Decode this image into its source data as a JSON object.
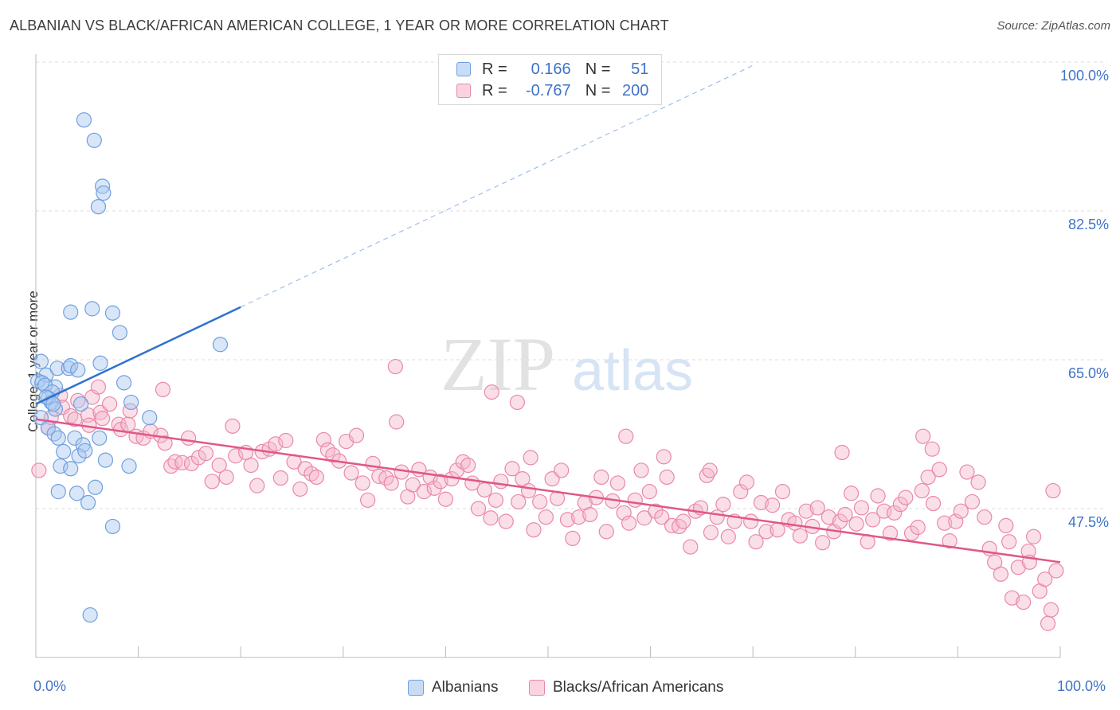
{
  "header": {
    "title": "ALBANIAN VS BLACK/AFRICAN AMERICAN COLLEGE, 1 YEAR OR MORE CORRELATION CHART",
    "source": "Source: ZipAtlas.com"
  },
  "watermark": {
    "text_zip": "ZIP",
    "text_atlas": "atlas"
  },
  "legend": {
    "rows": [
      {
        "r_label": "R =",
        "r_value": "0.166",
        "n_label": "N =",
        "n_value": "51",
        "color": "#a8c8f0"
      },
      {
        "r_label": "R =",
        "r_value": "-0.767",
        "n_label": "N =",
        "n_value": "200",
        "color": "#f5b8cb"
      }
    ],
    "bottom": [
      {
        "label": "Albanians",
        "color": "#a8c8f0"
      },
      {
        "label": "Blacks/African Americans",
        "color": "#f5b8cb"
      }
    ]
  },
  "chart_data": {
    "type": "scatter",
    "ylabel": "College, 1 year or more",
    "xlim": [
      0,
      100
    ],
    "ylim": [
      30,
      100
    ],
    "x_tick_labels": [
      "0.0%",
      "100.0%"
    ],
    "y_ticks": [
      {
        "value": 100,
        "label": "100.0%"
      },
      {
        "value": 82.5,
        "label": "82.5%"
      },
      {
        "value": 65,
        "label": "65.0%"
      },
      {
        "value": 47.5,
        "label": "47.5%"
      }
    ],
    "grid": "horizontal dashed",
    "series": [
      {
        "name": "Albanians",
        "color": "#a8c8f0",
        "edge": "#6fa0e0",
        "trend": {
          "x0": 0,
          "y0": 59.8,
          "x1": 20,
          "y1": 71.2,
          "extend_to_x": 70,
          "extend_y": 99.6,
          "color": "#2f72d0"
        },
        "points": [
          [
            4.7,
            93.2
          ],
          [
            5.7,
            90.8
          ],
          [
            6.5,
            85.4
          ],
          [
            6.6,
            84.6
          ],
          [
            6.1,
            83.0
          ],
          [
            3.4,
            70.6
          ],
          [
            5.5,
            71.0
          ],
          [
            7.5,
            70.5
          ],
          [
            8.2,
            68.2
          ],
          [
            18.0,
            66.8
          ],
          [
            0.5,
            64.8
          ],
          [
            1.0,
            63.2
          ],
          [
            0.2,
            62.5
          ],
          [
            0.6,
            62.3
          ],
          [
            1.9,
            61.8
          ],
          [
            2.1,
            64.0
          ],
          [
            3.2,
            64.0
          ],
          [
            3.4,
            64.3
          ],
          [
            4.1,
            63.8
          ],
          [
            6.3,
            64.6
          ],
          [
            0.9,
            62.0
          ],
          [
            1.6,
            61.2
          ],
          [
            1.2,
            60.5
          ],
          [
            1.5,
            60.0
          ],
          [
            1.0,
            60.6
          ],
          [
            4.4,
            59.8
          ],
          [
            1.9,
            59.2
          ],
          [
            8.6,
            62.3
          ],
          [
            0.5,
            58.2
          ],
          [
            1.2,
            57.0
          ],
          [
            1.8,
            56.3
          ],
          [
            2.2,
            55.8
          ],
          [
            2.7,
            54.2
          ],
          [
            3.8,
            55.8
          ],
          [
            4.6,
            55.0
          ],
          [
            4.2,
            53.7
          ],
          [
            4.8,
            54.3
          ],
          [
            6.8,
            53.2
          ],
          [
            2.4,
            52.5
          ],
          [
            3.4,
            52.2
          ],
          [
            9.1,
            52.5
          ],
          [
            2.2,
            49.5
          ],
          [
            4.0,
            49.3
          ],
          [
            5.8,
            50.0
          ],
          [
            5.1,
            48.2
          ],
          [
            7.5,
            45.4
          ],
          [
            5.3,
            35.0
          ],
          [
            6.2,
            55.8
          ],
          [
            1.7,
            59.8
          ],
          [
            11.1,
            58.2
          ],
          [
            9.3,
            60.0
          ]
        ]
      },
      {
        "name": "Blacks/African Americans",
        "color": "#f5b8cb",
        "edge": "#ea88a8",
        "trend": {
          "x0": 0,
          "y0": 58.0,
          "x1": 100,
          "y1": 41.2,
          "color": "#e0578a"
        },
        "points": [
          [
            0.3,
            52.0
          ],
          [
            1.2,
            57.0
          ],
          [
            1.5,
            58.2
          ],
          [
            2.4,
            60.8
          ],
          [
            2.6,
            59.4
          ],
          [
            3.4,
            58.4
          ],
          [
            3.8,
            58.0
          ],
          [
            4.1,
            60.2
          ],
          [
            5.1,
            58.5
          ],
          [
            5.5,
            60.6
          ],
          [
            5.2,
            57.3
          ],
          [
            6.3,
            58.8
          ],
          [
            6.5,
            58.1
          ],
          [
            7.2,
            59.8
          ],
          [
            8.1,
            57.4
          ],
          [
            8.3,
            56.8
          ],
          [
            9.2,
            59.0
          ],
          [
            9.0,
            57.4
          ],
          [
            9.8,
            56.0
          ],
          [
            10.5,
            55.8
          ],
          [
            11.2,
            56.6
          ],
          [
            12.2,
            56.1
          ],
          [
            12.6,
            55.2
          ],
          [
            13.2,
            52.5
          ],
          [
            13.6,
            53.0
          ],
          [
            14.3,
            52.9
          ],
          [
            14.9,
            55.8
          ],
          [
            15.2,
            52.8
          ],
          [
            15.9,
            53.5
          ],
          [
            16.6,
            54.0
          ],
          [
            17.2,
            50.7
          ],
          [
            17.9,
            52.6
          ],
          [
            18.6,
            51.2
          ],
          [
            19.2,
            57.2
          ],
          [
            19.5,
            53.7
          ],
          [
            20.5,
            54.1
          ],
          [
            21.0,
            52.6
          ],
          [
            21.6,
            50.2
          ],
          [
            22.1,
            54.2
          ],
          [
            22.8,
            54.5
          ],
          [
            23.4,
            55.1
          ],
          [
            23.9,
            51.1
          ],
          [
            24.4,
            55.5
          ],
          [
            25.2,
            53.0
          ],
          [
            25.8,
            49.8
          ],
          [
            26.3,
            52.2
          ],
          [
            26.9,
            51.6
          ],
          [
            27.4,
            51.2
          ],
          [
            28.1,
            55.6
          ],
          [
            28.5,
            54.4
          ],
          [
            29.0,
            53.8
          ],
          [
            29.6,
            53.1
          ],
          [
            30.3,
            55.4
          ],
          [
            30.8,
            51.7
          ],
          [
            31.3,
            56.1
          ],
          [
            31.9,
            50.5
          ],
          [
            32.4,
            48.5
          ],
          [
            32.9,
            52.8
          ],
          [
            33.5,
            51.3
          ],
          [
            34.2,
            51.1
          ],
          [
            34.7,
            50.5
          ],
          [
            35.2,
            57.7
          ],
          [
            35.7,
            51.8
          ],
          [
            36.3,
            48.9
          ],
          [
            36.8,
            50.3
          ],
          [
            37.4,
            52.1
          ],
          [
            37.9,
            49.5
          ],
          [
            38.5,
            51.2
          ],
          [
            38.9,
            49.9
          ],
          [
            39.5,
            50.7
          ],
          [
            40.0,
            48.6
          ],
          [
            40.6,
            51.0
          ],
          [
            41.1,
            52.0
          ],
          [
            41.7,
            53.0
          ],
          [
            42.2,
            52.6
          ],
          [
            42.6,
            50.5
          ],
          [
            43.2,
            47.5
          ],
          [
            43.8,
            49.7
          ],
          [
            44.4,
            46.4
          ],
          [
            44.9,
            48.5
          ],
          [
            45.4,
            50.7
          ],
          [
            45.9,
            46.0
          ],
          [
            46.5,
            52.2
          ],
          [
            47.1,
            48.3
          ],
          [
            47.5,
            51.0
          ],
          [
            48.1,
            49.6
          ],
          [
            48.6,
            45.0
          ],
          [
            49.2,
            48.3
          ],
          [
            49.8,
            46.5
          ],
          [
            50.4,
            51.0
          ],
          [
            50.9,
            48.7
          ],
          [
            51.3,
            52.0
          ],
          [
            51.9,
            46.2
          ],
          [
            52.4,
            44.0
          ],
          [
            53.0,
            46.5
          ],
          [
            53.6,
            48.2
          ],
          [
            54.1,
            46.8
          ],
          [
            54.7,
            48.8
          ],
          [
            55.2,
            51.2
          ],
          [
            55.7,
            44.8
          ],
          [
            56.3,
            48.4
          ],
          [
            56.8,
            50.5
          ],
          [
            57.4,
            47.0
          ],
          [
            57.9,
            45.8
          ],
          [
            58.5,
            48.5
          ],
          [
            59.1,
            52.0
          ],
          [
            59.4,
            46.4
          ],
          [
            59.9,
            49.5
          ],
          [
            60.5,
            47.2
          ],
          [
            61.1,
            46.5
          ],
          [
            61.6,
            51.2
          ],
          [
            62.1,
            45.5
          ],
          [
            62.8,
            45.4
          ],
          [
            63.2,
            46.0
          ],
          [
            63.9,
            43.0
          ],
          [
            64.4,
            47.2
          ],
          [
            64.9,
            47.6
          ],
          [
            65.5,
            51.4
          ],
          [
            65.9,
            44.7
          ],
          [
            66.5,
            46.5
          ],
          [
            67.1,
            48.0
          ],
          [
            67.6,
            44.2
          ],
          [
            68.2,
            46.0
          ],
          [
            68.8,
            49.5
          ],
          [
            69.4,
            50.6
          ],
          [
            69.8,
            46.0
          ],
          [
            70.3,
            43.6
          ],
          [
            70.8,
            48.2
          ],
          [
            71.3,
            44.8
          ],
          [
            71.9,
            47.9
          ],
          [
            72.4,
            45.0
          ],
          [
            72.9,
            49.5
          ],
          [
            73.5,
            46.2
          ],
          [
            74.1,
            45.8
          ],
          [
            74.6,
            44.3
          ],
          [
            75.2,
            47.2
          ],
          [
            75.8,
            45.4
          ],
          [
            76.3,
            47.6
          ],
          [
            76.8,
            43.5
          ],
          [
            77.4,
            46.5
          ],
          [
            77.9,
            44.8
          ],
          [
            78.5,
            46.0
          ],
          [
            79.0,
            46.8
          ],
          [
            79.6,
            49.3
          ],
          [
            80.1,
            45.7
          ],
          [
            80.6,
            47.6
          ],
          [
            81.2,
            43.6
          ],
          [
            81.7,
            46.2
          ],
          [
            82.2,
            49.0
          ],
          [
            82.8,
            47.2
          ],
          [
            83.4,
            44.6
          ],
          [
            83.8,
            47.0
          ],
          [
            84.4,
            48.0
          ],
          [
            84.9,
            48.8
          ],
          [
            85.5,
            44.6
          ],
          [
            86.1,
            45.3
          ],
          [
            86.5,
            49.6
          ],
          [
            87.1,
            51.2
          ],
          [
            87.6,
            48.1
          ],
          [
            88.2,
            52.1
          ],
          [
            88.7,
            45.8
          ],
          [
            89.2,
            43.7
          ],
          [
            89.8,
            46.0
          ],
          [
            90.3,
            47.2
          ],
          [
            90.9,
            51.8
          ],
          [
            91.4,
            48.3
          ],
          [
            92.0,
            50.6
          ],
          [
            92.6,
            46.5
          ],
          [
            93.1,
            42.8
          ],
          [
            93.6,
            41.2
          ],
          [
            94.2,
            39.8
          ],
          [
            94.7,
            45.5
          ],
          [
            95.3,
            37.0
          ],
          [
            95.9,
            40.6
          ],
          [
            96.4,
            36.5
          ],
          [
            96.9,
            42.5
          ],
          [
            97.4,
            44.2
          ],
          [
            98.0,
            37.8
          ],
          [
            98.5,
            39.2
          ],
          [
            99.1,
            35.6
          ],
          [
            99.6,
            40.2
          ],
          [
            98.8,
            34.0
          ],
          [
            97.0,
            41.2
          ],
          [
            95.0,
            43.6
          ],
          [
            48.3,
            53.5
          ],
          [
            57.6,
            56.0
          ],
          [
            61.3,
            53.6
          ],
          [
            65.8,
            52.0
          ],
          [
            87.5,
            54.5
          ],
          [
            35.1,
            64.2
          ],
          [
            44.5,
            61.2
          ],
          [
            47.0,
            60.0
          ],
          [
            78.7,
            54.1
          ],
          [
            86.6,
            56.0
          ],
          [
            99.3,
            49.6
          ],
          [
            12.4,
            61.5
          ],
          [
            6.1,
            61.8
          ]
        ]
      }
    ]
  }
}
